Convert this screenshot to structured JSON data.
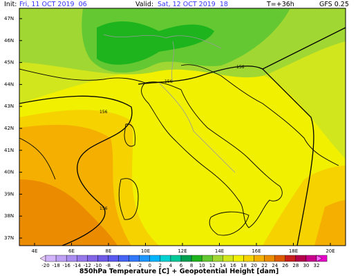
{
  "header": {
    "init_label": "Init:",
    "init": "Fri, 11 OCT 2019  06",
    "valid_label": "Valid:",
    "valid": "Sat, 12 OCT 2019  18",
    "lead": "T=+36h",
    "model": "GFS 0.25"
  },
  "map": {
    "lat_labels": [
      "47N",
      "46N",
      "45N",
      "44N",
      "43N",
      "42N",
      "41N",
      "40N",
      "39N",
      "38N",
      "37N"
    ],
    "lon_labels": [
      "4E",
      "6E",
      "8E",
      "10E",
      "12E",
      "14E",
      "16E",
      "18E",
      "20E"
    ],
    "contour_labels": [
      "156",
      "156",
      "156",
      "156"
    ]
  },
  "colorbar": {
    "labels": [
      -20,
      -18,
      -16,
      -14,
      -12,
      -10,
      -8,
      -6,
      -4,
      -2,
      0,
      2,
      4,
      6,
      8,
      10,
      12,
      14,
      16,
      18,
      20,
      22,
      24,
      26,
      28,
      30,
      32
    ],
    "colors": [
      "#e6c8ff",
      "#d2b4fa",
      "#beA0f5",
      "#aa8cf0",
      "#9678eb",
      "#8264e6",
      "#6e5ae6",
      "#5a5af0",
      "#4664f5",
      "#3278fa",
      "#1e96ff",
      "#00b4ff",
      "#00d2d2",
      "#00c896",
      "#00a050",
      "#1eb41e",
      "#64c832",
      "#a0d732",
      "#d2e61e",
      "#f0f000",
      "#f5d200",
      "#f5af00",
      "#eb8c00",
      "#dc5a00",
      "#c81e1e",
      "#b4004b",
      "#c8008c",
      "#e600c8",
      "#ff64ff"
    ]
  },
  "footer": {
    "title": "850hPa Temperature [C] + Geopotential Height [dam]"
  }
}
